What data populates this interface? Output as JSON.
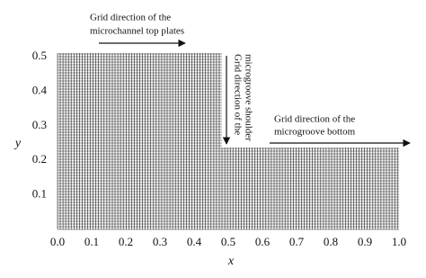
{
  "chart_data": {
    "type": "mesh",
    "xlabel": "x",
    "ylabel": "y",
    "xlim": [
      0,
      1
    ],
    "ylim": [
      0,
      0.5
    ],
    "xticks": [
      {
        "value": 0,
        "label": "0.0"
      },
      0.1,
      0.2,
      0.3,
      0.4,
      0.5,
      0.6,
      0.7,
      0.8,
      0.9,
      {
        "value": 1,
        "label": "1.0"
      }
    ],
    "yticks": [
      0.1,
      0.2,
      0.3,
      0.4,
      0.5
    ],
    "annotations": [
      {
        "lines": [
          "Grid direction of the",
          "microchannel top plates"
        ]
      },
      {
        "lines": [
          "Grid direction of the",
          "microgroove shoulder"
        ]
      },
      {
        "lines": [
          "Grid direction of the",
          "microgroove bottom"
        ]
      }
    ]
  }
}
